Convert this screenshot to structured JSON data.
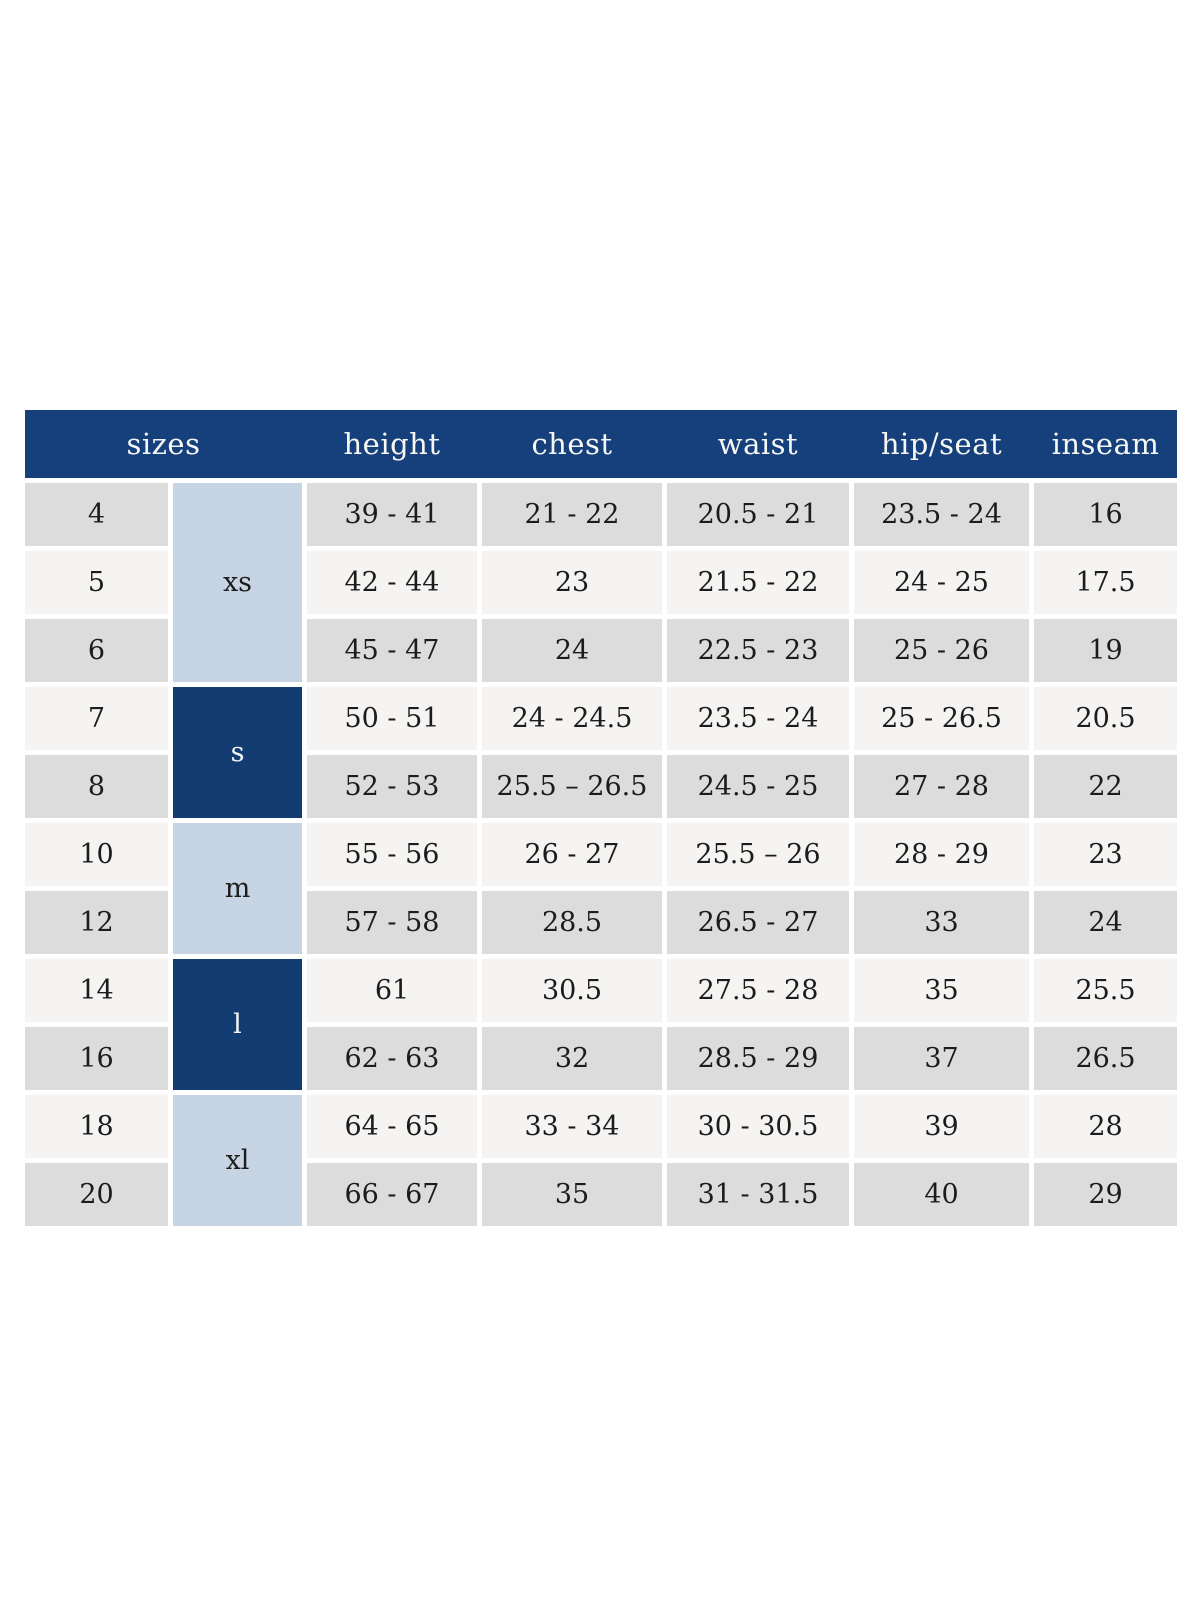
{
  "table": {
    "headers": [
      "sizes",
      "height",
      "chest",
      "waist",
      "hip/seat",
      "inseam"
    ],
    "rows": [
      {
        "size": "4",
        "height": "39 - 41",
        "chest": "21 - 22",
        "waist": "20.5 - 21",
        "hip_seat": "23.5 - 24",
        "inseam": "16"
      },
      {
        "size": "5",
        "height": "42 - 44",
        "chest": "23",
        "waist": "21.5 - 22",
        "hip_seat": "24 - 25",
        "inseam": "17.5"
      },
      {
        "size": "6",
        "height": "45 - 47",
        "chest": "24",
        "waist": "22.5 - 23",
        "hip_seat": "25 - 26",
        "inseam": "19"
      },
      {
        "size": "7",
        "height": "50 - 51",
        "chest": "24 - 24.5",
        "waist": "23.5 - 24",
        "hip_seat": "25 - 26.5",
        "inseam": "20.5"
      },
      {
        "size": "8",
        "height": "52 - 53",
        "chest": "25.5 – 26.5",
        "waist": "24.5 - 25",
        "hip_seat": "27 - 28",
        "inseam": "22"
      },
      {
        "size": "10",
        "height": "55 - 56",
        "chest": "26 - 27",
        "waist": "25.5 – 26",
        "hip_seat": "28 - 29",
        "inseam": "23"
      },
      {
        "size": "12",
        "height": "57 - 58",
        "chest": "28.5",
        "waist": "26.5 - 27",
        "hip_seat": "33",
        "inseam": "24"
      },
      {
        "size": "14",
        "height": "61",
        "chest": "30.5",
        "waist": "27.5 - 28",
        "hip_seat": "35",
        "inseam": "25.5"
      },
      {
        "size": "16",
        "height": "62 - 63",
        "chest": "32",
        "waist": "28.5 - 29",
        "hip_seat": "37",
        "inseam": "26.5"
      },
      {
        "size": "18",
        "height": "64 - 65",
        "chest": "33 - 34",
        "waist": "30 - 30.5",
        "hip_seat": "39",
        "inseam": "28"
      },
      {
        "size": "20",
        "height": "66 - 67",
        "chest": "35",
        "waist": "31 - 31.5",
        "hip_seat": "40",
        "inseam": "29"
      }
    ],
    "groups": [
      {
        "label": "xs",
        "start": 1,
        "span": 3,
        "variant": "light"
      },
      {
        "label": "s",
        "start": 4,
        "span": 2,
        "variant": "dark"
      },
      {
        "label": "m",
        "start": 6,
        "span": 2,
        "variant": "light"
      },
      {
        "label": "l",
        "start": 8,
        "span": 2,
        "variant": "dark"
      },
      {
        "label": "xl",
        "start": 10,
        "span": 2,
        "variant": "light"
      }
    ],
    "colors": {
      "header_navy": "#16407c",
      "header_text": "#f7f7f5",
      "group_dark": "#133d72",
      "group_light": "#c7d4e4",
      "row_gray": "#dcdcdc",
      "row_light": "#f5f4f2"
    }
  }
}
